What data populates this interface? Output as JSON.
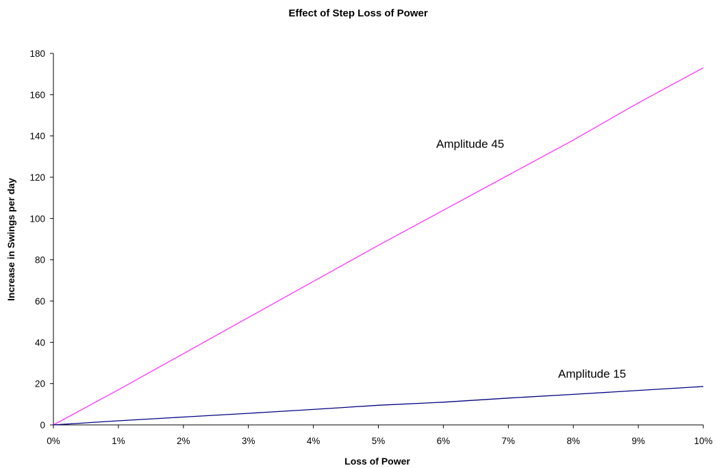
{
  "chart_data": {
    "type": "line",
    "title": "Effect of Step Loss of Power",
    "xlabel": "Loss of Power",
    "ylabel": "Increase in Swings per day",
    "x": [
      0,
      1,
      2,
      3,
      4,
      5,
      6,
      7,
      8,
      9,
      10
    ],
    "x_tick_labels": [
      "0%",
      "1%",
      "2%",
      "3%",
      "4%",
      "5%",
      "6%",
      "7%",
      "8%",
      "9%",
      "10%"
    ],
    "xlim": [
      0,
      10
    ],
    "ylim": [
      0,
      180
    ],
    "y_ticks": [
      0,
      20,
      40,
      60,
      80,
      100,
      120,
      140,
      160,
      180
    ],
    "grid": false,
    "legend": "none",
    "series": [
      {
        "name": "Amplitude 45",
        "color": "#ff33ff",
        "values": [
          0,
          17,
          34.5,
          52,
          69.5,
          87,
          104,
          121,
          138,
          156,
          173
        ]
      },
      {
        "name": "Amplitude 15",
        "color": "#000080",
        "values": [
          0,
          2,
          3.8,
          5.6,
          7.5,
          9.5,
          11,
          13,
          14.8,
          16.7,
          18.6
        ]
      }
    ]
  }
}
